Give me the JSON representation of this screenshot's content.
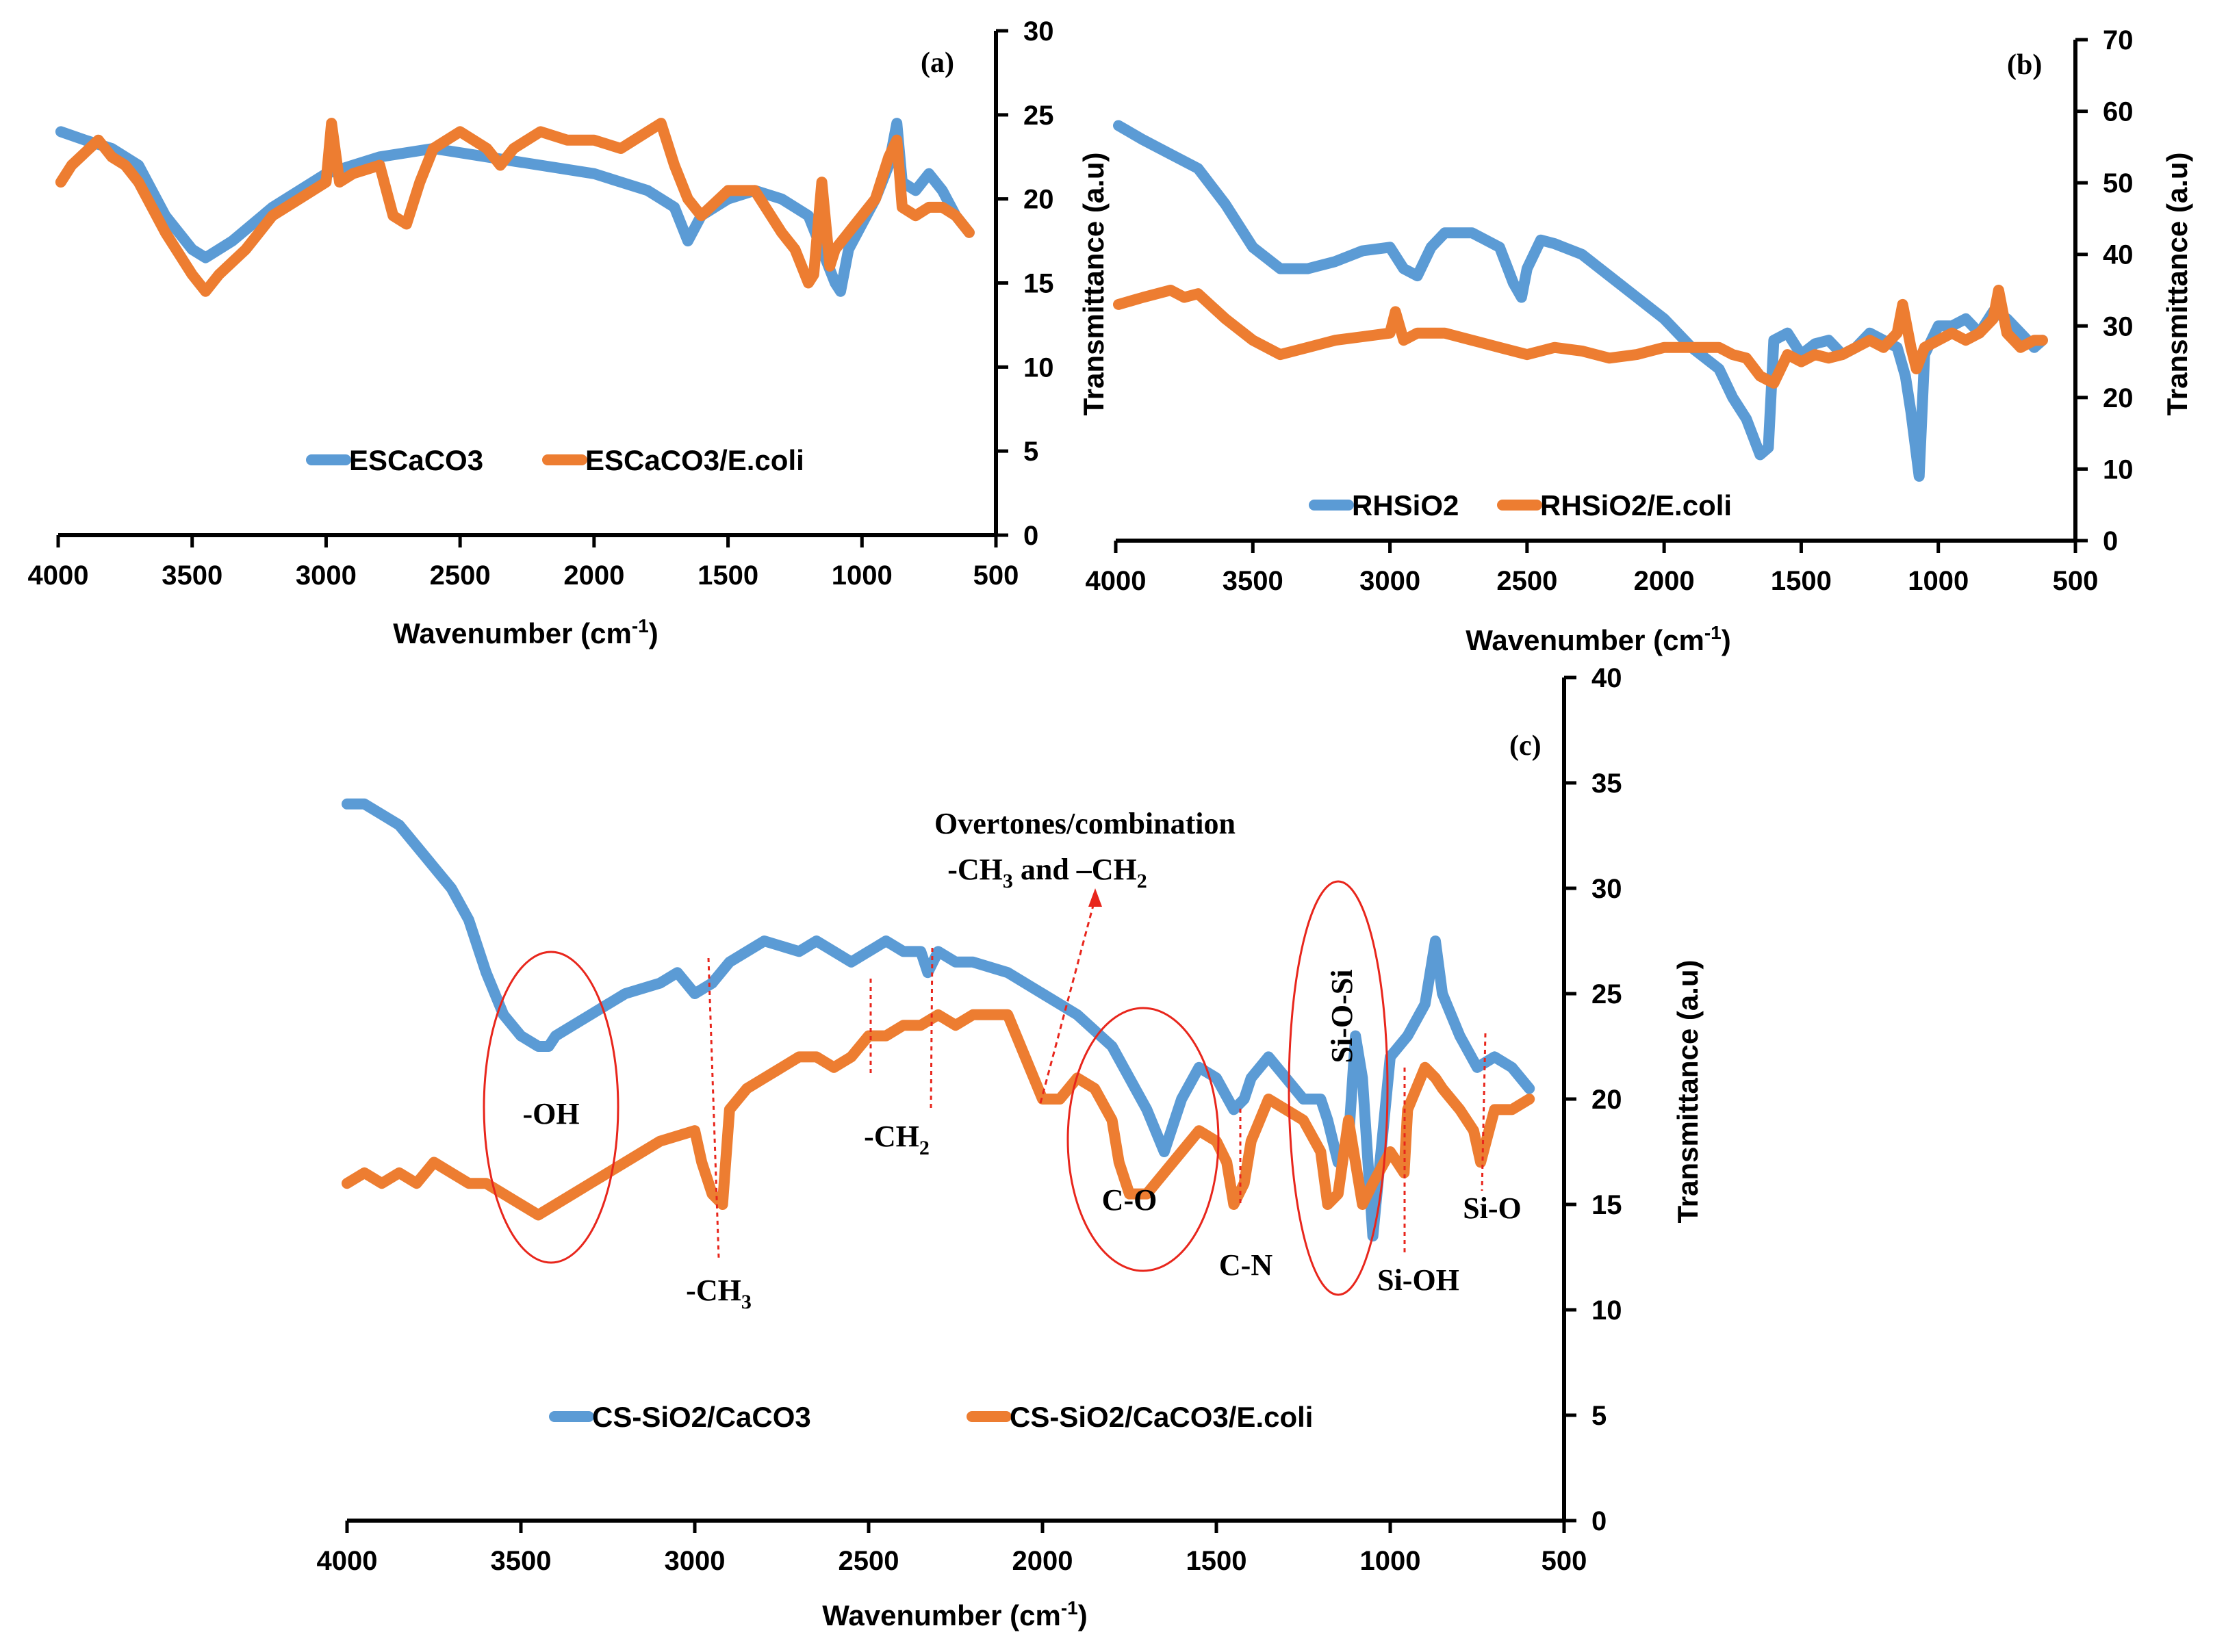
{
  "colors": {
    "blue": "#5b9bd5",
    "orange": "#ed7d31",
    "annotation": "#e8261c"
  },
  "chart_data": [
    {
      "panel": "(a)",
      "type": "line",
      "xlabel": "Wavenumber (cm⁻¹)",
      "ylabel": "",
      "xlim": [
        4000,
        500
      ],
      "ylim": [
        0,
        30
      ],
      "xticks": [
        4000,
        3500,
        3000,
        2500,
        2000,
        1500,
        1000,
        500
      ],
      "yticks": [
        0,
        5,
        10,
        15,
        20,
        25,
        30
      ],
      "y_axis_side": "right",
      "legend_position": "bottom-center",
      "series": [
        {
          "name": "ESCaCO3",
          "color": "#5b9bd5",
          "x": [
            3990,
            3900,
            3800,
            3700,
            3600,
            3500,
            3450,
            3350,
            3200,
            3000,
            2800,
            2600,
            2400,
            2200,
            2000,
            1900,
            1800,
            1700,
            1650,
            1600,
            1500,
            1400,
            1300,
            1200,
            1150,
            1100,
            1080,
            1050,
            1000,
            950,
            900,
            870,
            850,
            800,
            750,
            700,
            650,
            600
          ],
          "y": [
            24,
            23.5,
            23,
            22,
            19,
            17,
            16.5,
            17.5,
            19.5,
            21.5,
            22.5,
            23,
            22.5,
            22,
            21.5,
            21,
            20.5,
            19.5,
            17.5,
            19,
            20,
            20.5,
            20,
            19,
            17,
            15,
            14.5,
            17,
            18.5,
            20,
            22,
            24.5,
            21,
            20.5,
            21.5,
            20.5,
            19,
            18
          ]
        },
        {
          "name": "ESCaCO3/E.coli",
          "color": "#ed7d31",
          "x": [
            3990,
            3950,
            3850,
            3800,
            3750,
            3700,
            3600,
            3500,
            3450,
            3400,
            3300,
            3200,
            3100,
            3000,
            2980,
            2950,
            2900,
            2800,
            2750,
            2700,
            2650,
            2600,
            2500,
            2400,
            2350,
            2300,
            2200,
            2100,
            2000,
            1900,
            1800,
            1750,
            1700,
            1650,
            1600,
            1500,
            1400,
            1300,
            1250,
            1200,
            1180,
            1150,
            1120,
            1100,
            1050,
            1000,
            950,
            900,
            870,
            850,
            800,
            750,
            700,
            650,
            600
          ],
          "y": [
            21,
            22,
            23.5,
            22.5,
            22,
            21,
            18,
            15.5,
            14.5,
            15.5,
            17,
            19,
            20,
            21,
            24.5,
            21,
            21.5,
            22,
            19,
            18.5,
            21,
            23,
            24,
            23,
            22,
            23,
            24,
            23.5,
            23.5,
            23,
            24,
            24.5,
            22,
            20,
            19,
            20.5,
            20.5,
            18,
            17,
            15,
            15.5,
            21,
            16,
            17,
            18,
            19,
            20,
            22.5,
            23.5,
            19.5,
            19,
            19.5,
            19.5,
            19,
            18
          ]
        }
      ]
    },
    {
      "panel": "(b)",
      "type": "line",
      "xlabel": "Wavenumber (cm⁻¹)",
      "ylabel": "Transmittance (a.u)",
      "ylabel_left": "Transmittance (a.u)",
      "ylabel_right": "Transmittance (a.u)",
      "xlim": [
        4000,
        500
      ],
      "ylim": [
        0,
        70
      ],
      "xticks": [
        4000,
        3500,
        3000,
        2500,
        2000,
        1500,
        1000,
        500
      ],
      "yticks": [
        0,
        10,
        20,
        30,
        40,
        50,
        60,
        70
      ],
      "y_axis_side": "right",
      "legend_position": "bottom-center",
      "series": [
        {
          "name": "RHSiO2",
          "color": "#5b9bd5",
          "x": [
            3990,
            3900,
            3800,
            3700,
            3600,
            3500,
            3400,
            3300,
            3200,
            3100,
            3000,
            2950,
            2900,
            2850,
            2800,
            2700,
            2600,
            2550,
            2520,
            2500,
            2450,
            2400,
            2300,
            2200,
            2100,
            2000,
            1900,
            1800,
            1750,
            1700,
            1650,
            1620,
            1600,
            1550,
            1500,
            1450,
            1400,
            1350,
            1300,
            1250,
            1200,
            1150,
            1120,
            1100,
            1080,
            1070,
            1050,
            1000,
            950,
            900,
            850,
            800,
            750,
            700,
            650,
            620
          ],
          "y": [
            58,
            56,
            54,
            52,
            47,
            41,
            38,
            38,
            39,
            40.5,
            41,
            38,
            37,
            41,
            43,
            43,
            41,
            36,
            34,
            38,
            42,
            41.5,
            40,
            37,
            34,
            31,
            27,
            24,
            20,
            17,
            12,
            13,
            28,
            29,
            26,
            27.5,
            28,
            26,
            27,
            29,
            28,
            27,
            23,
            18,
            12,
            9,
            26,
            30,
            30,
            31,
            29,
            32,
            31,
            29,
            27,
            28
          ]
        },
        {
          "name": "RHSiO2/E.coli",
          "color": "#ed7d31",
          "x": [
            3990,
            3900,
            3800,
            3750,
            3700,
            3600,
            3500,
            3400,
            3300,
            3200,
            3100,
            3000,
            2980,
            2950,
            2900,
            2800,
            2700,
            2600,
            2500,
            2400,
            2300,
            2200,
            2100,
            2000,
            1900,
            1800,
            1750,
            1700,
            1650,
            1600,
            1550,
            1500,
            1450,
            1400,
            1350,
            1300,
            1250,
            1200,
            1150,
            1130,
            1100,
            1080,
            1050,
            1000,
            950,
            900,
            850,
            800,
            780,
            750,
            700,
            650,
            620
          ],
          "y": [
            33,
            34,
            35,
            34,
            34.5,
            31,
            28,
            26,
            27,
            28,
            28.5,
            29,
            32,
            28,
            29,
            29,
            28,
            27,
            26,
            27,
            26.5,
            25.5,
            26,
            27,
            27,
            27,
            26,
            25.5,
            23,
            22,
            26,
            25,
            26,
            25.5,
            26,
            27,
            28,
            27,
            29,
            33,
            27,
            24,
            27,
            28,
            29,
            28,
            29,
            31,
            35,
            29,
            27,
            28,
            28
          ]
        }
      ]
    },
    {
      "panel": "(c)",
      "type": "line",
      "xlabel": "Wavenumber (cm⁻¹)",
      "ylabel": "Transmittance (a.u)",
      "xlim": [
        4000,
        500
      ],
      "ylim": [
        0,
        40
      ],
      "xticks": [
        4000,
        3500,
        3000,
        2500,
        2000,
        1500,
        1000,
        500
      ],
      "yticks": [
        0,
        5,
        10,
        15,
        20,
        25,
        30,
        35,
        40
      ],
      "y_axis_side": "right",
      "legend_position": "bottom",
      "series": [
        {
          "name": "CS-SiO2/CaCO3",
          "color": "#5b9bd5",
          "x": [
            4000,
            3950,
            3900,
            3850,
            3800,
            3700,
            3650,
            3600,
            3550,
            3500,
            3450,
            3420,
            3400,
            3350,
            3300,
            3250,
            3200,
            3100,
            3050,
            3000,
            2950,
            2900,
            2850,
            2800,
            2700,
            2650,
            2600,
            2550,
            2500,
            2450,
            2400,
            2350,
            2330,
            2300,
            2250,
            2200,
            2100,
            2000,
            1900,
            1800,
            1750,
            1700,
            1650,
            1600,
            1550,
            1500,
            1450,
            1420,
            1400,
            1350,
            1300,
            1250,
            1200,
            1180,
            1150,
            1120,
            1100,
            1080,
            1050,
            1000,
            950,
            900,
            870,
            850,
            800,
            750,
            700,
            650,
            600
          ],
          "y": [
            34,
            34,
            33.5,
            33,
            32,
            30,
            28.5,
            26,
            24,
            23,
            22.5,
            22.5,
            23,
            23.5,
            24,
            24.5,
            25,
            25.5,
            26,
            25,
            25.5,
            26.5,
            27,
            27.5,
            27,
            27.5,
            27,
            26.5,
            27,
            27.5,
            27,
            27,
            26,
            27,
            26.5,
            26.5,
            26,
            25,
            24,
            22.5,
            21,
            19.5,
            17.5,
            20,
            21.5,
            21,
            19.5,
            20,
            21,
            22,
            21,
            20,
            20,
            19,
            17,
            18,
            23,
            21,
            13.5,
            22,
            23,
            24.5,
            27.5,
            25,
            23,
            21.5,
            22,
            21.5,
            20.5
          ]
        },
        {
          "name": "CS-SiO2/CaCO3/E.coli",
          "color": "#ed7d31",
          "x": [
            4000,
            3950,
            3900,
            3850,
            3800,
            3750,
            3700,
            3650,
            3600,
            3550,
            3500,
            3450,
            3400,
            3350,
            3300,
            3200,
            3100,
            3000,
            2980,
            2950,
            2920,
            2900,
            2850,
            2800,
            2750,
            2700,
            2650,
            2600,
            2550,
            2500,
            2450,
            2400,
            2350,
            2300,
            2250,
            2200,
            2150,
            2100,
            2050,
            2000,
            1950,
            1900,
            1850,
            1800,
            1780,
            1750,
            1700,
            1650,
            1600,
            1550,
            1500,
            1470,
            1450,
            1420,
            1400,
            1350,
            1300,
            1250,
            1200,
            1180,
            1150,
            1120,
            1100,
            1080,
            1050,
            1000,
            960,
            950,
            900,
            870,
            850,
            800,
            760,
            740,
            700,
            650,
            600
          ],
          "y": [
            16,
            16.5,
            16,
            16.5,
            16,
            17,
            16.5,
            16,
            16,
            15.5,
            15,
            14.5,
            15,
            15.5,
            16,
            17,
            18,
            18.5,
            17,
            15.5,
            15,
            19.5,
            20.5,
            21,
            21.5,
            22,
            22,
            21.5,
            22,
            23,
            23,
            23.5,
            23.5,
            24,
            23.5,
            24,
            24,
            24,
            22,
            20,
            20,
            21,
            20.5,
            19,
            17,
            15.5,
            15.5,
            16.5,
            17.5,
            18.5,
            18,
            17,
            15,
            16,
            18,
            20,
            19.5,
            19,
            17.5,
            15,
            15.5,
            19,
            17,
            15,
            16,
            17.5,
            16.5,
            19.5,
            21.5,
            21,
            20.5,
            19.5,
            18.5,
            17,
            19.5,
            19.5,
            20
          ]
        }
      ],
      "annotations": [
        {
          "label": "-OH",
          "wavenumber": 3420
        },
        {
          "label": "-CH3",
          "wavenumber": 2930
        },
        {
          "label": "-CH2",
          "wavenumber": 2500
        },
        {
          "label": "Overtones/combination",
          "line2": "-CH3 and –CH2",
          "wavenumber": 2020
        },
        {
          "label": "C-O",
          "wavenumber": 1700
        },
        {
          "label": "C-N",
          "wavenumber": 1450
        },
        {
          "label": "Si-O-Si",
          "wavenumber": 1150
        },
        {
          "label": "Si-OH",
          "wavenumber": 960
        },
        {
          "label": "Si-O",
          "wavenumber": 720
        }
      ]
    }
  ],
  "labels": {
    "panel_a": "(a)",
    "panel_b": "(b)",
    "panel_c": "(c)",
    "xlabel_prefix": "Wavenumber (cm",
    "xlabel_sup": "-1",
    "xlabel_suffix": ")",
    "ylabel": "Transmittance (a.u)",
    "ann_oh": "-OH",
    "ann_ch3_base": "-CH",
    "ann_ch3_sub": "3",
    "ann_ch2_base": "-CH",
    "ann_ch2_sub": "2",
    "ann_overtones_1": "Overtones/combination",
    "ann_overtones_2a": "-CH",
    "ann_overtones_2a_sub": "3",
    "ann_overtones_2b": " and –CH",
    "ann_overtones_2b_sub": "2",
    "ann_co": "C-O",
    "ann_cn": "C-N",
    "ann_siosi": "Si-O-Si",
    "ann_sioh": "Si-OH",
    "ann_sio": "Si-O"
  }
}
